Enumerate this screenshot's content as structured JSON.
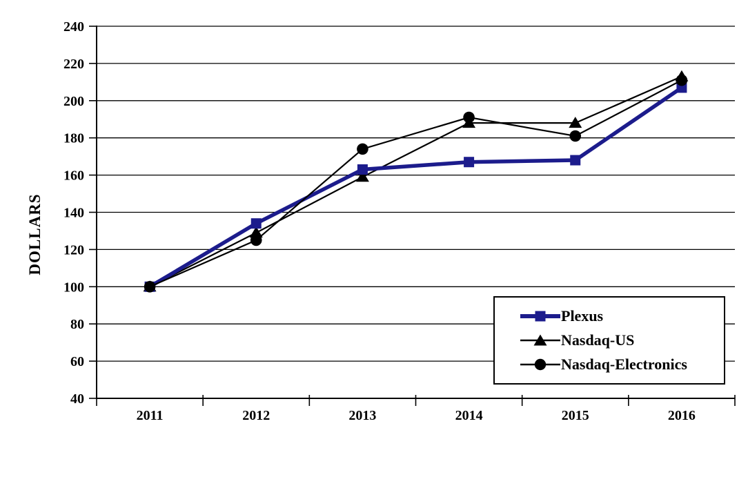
{
  "chart_data": {
    "type": "line",
    "title": "",
    "xlabel": "",
    "ylabel": "DOLLARS",
    "ylim": [
      40,
      240
    ],
    "yticks": [
      40,
      60,
      80,
      100,
      120,
      140,
      160,
      180,
      200,
      220,
      240
    ],
    "categories": [
      "2011",
      "2012",
      "2013",
      "2014",
      "2015",
      "2016"
    ],
    "series": [
      {
        "name": "Plexus",
        "color": "#1c1c8c",
        "marker": "square",
        "line_width": 5.5,
        "values": [
          100,
          134,
          163,
          167,
          168,
          207
        ]
      },
      {
        "name": "Nasdaq-US",
        "color": "#000000",
        "marker": "triangle",
        "line_width": 2.2,
        "values": [
          100,
          129,
          159,
          188,
          188,
          213
        ]
      },
      {
        "name": "Nasdaq-Electronics",
        "color": "#000000",
        "marker": "circle",
        "line_width": 2.2,
        "values": [
          100,
          125,
          174,
          191,
          181,
          211
        ]
      }
    ],
    "grid": "horizontal",
    "legend_position": "lower-right",
    "axis_color": "#000000",
    "background_color": "#ffffff"
  }
}
